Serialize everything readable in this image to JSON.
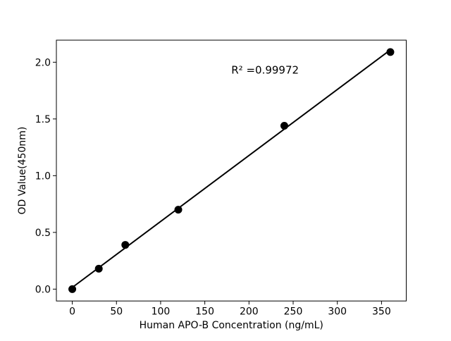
{
  "figure": {
    "background": "#ffffff",
    "foreground": "#000000"
  },
  "chart_data": {
    "type": "scatter",
    "title": "",
    "xlabel": "Human APO-B Concentration (ng/mL)",
    "ylabel": "OD Value(450nm)",
    "x": [
      0,
      30,
      60,
      120,
      240,
      360
    ],
    "y": [
      0.0,
      0.18,
      0.39,
      0.7,
      1.44,
      2.09
    ],
    "fit_line": true,
    "annotation": {
      "text": "R² =0.99972",
      "x": 180,
      "y": 1.9
    },
    "xticks": [
      0,
      50,
      100,
      150,
      200,
      250,
      300,
      350
    ],
    "xtick_labels": [
      "0",
      "50",
      "100",
      "150",
      "200",
      "250",
      "300",
      "350"
    ],
    "yticks": [
      0.0,
      0.5,
      1.0,
      1.5,
      2.0
    ],
    "ytick_labels": [
      "0.0",
      "0.5",
      "1.0",
      "1.5",
      "2.0"
    ],
    "xlim": [
      -18,
      378
    ],
    "ylim": [
      -0.1045,
      2.1945
    ],
    "grid": false,
    "legend": null,
    "marker_color": "#000000",
    "line_color": "#000000",
    "spine_color": "#000000"
  }
}
